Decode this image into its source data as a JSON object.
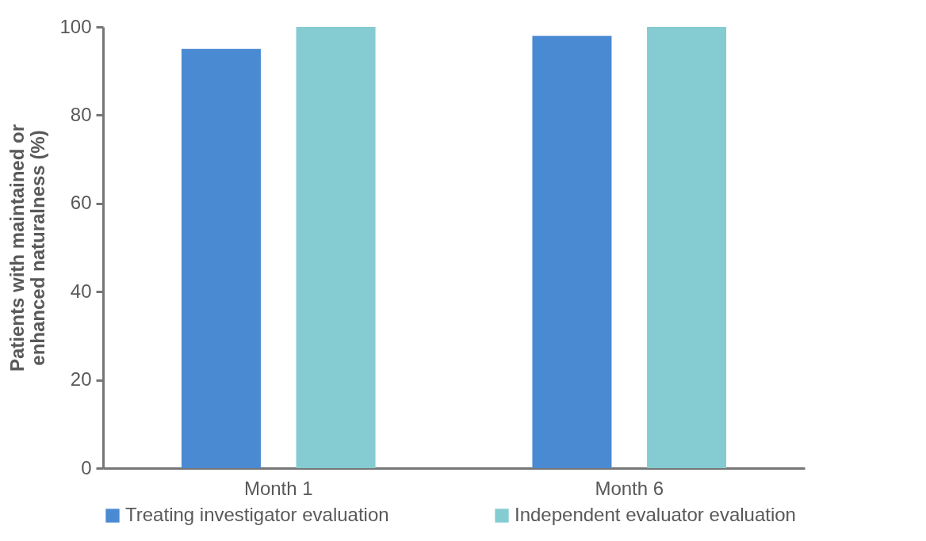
{
  "chart_data": {
    "type": "bar",
    "ylabel": "Patients with maintained or enhanced naturalness (%)",
    "categories": [
      "Month 1",
      "Month 6"
    ],
    "series": [
      {
        "name": "Treating investigator evaluation",
        "color": "#4a8ad2",
        "values": [
          95,
          98
        ]
      },
      {
        "name": "Independent evaluator evaluation",
        "color": "#84ccd2",
        "values": [
          100,
          100
        ]
      }
    ],
    "ylim": [
      0,
      100
    ],
    "yticks": [
      0,
      20,
      40,
      60,
      80,
      100
    ],
    "grid": false,
    "legend": "bottom"
  }
}
